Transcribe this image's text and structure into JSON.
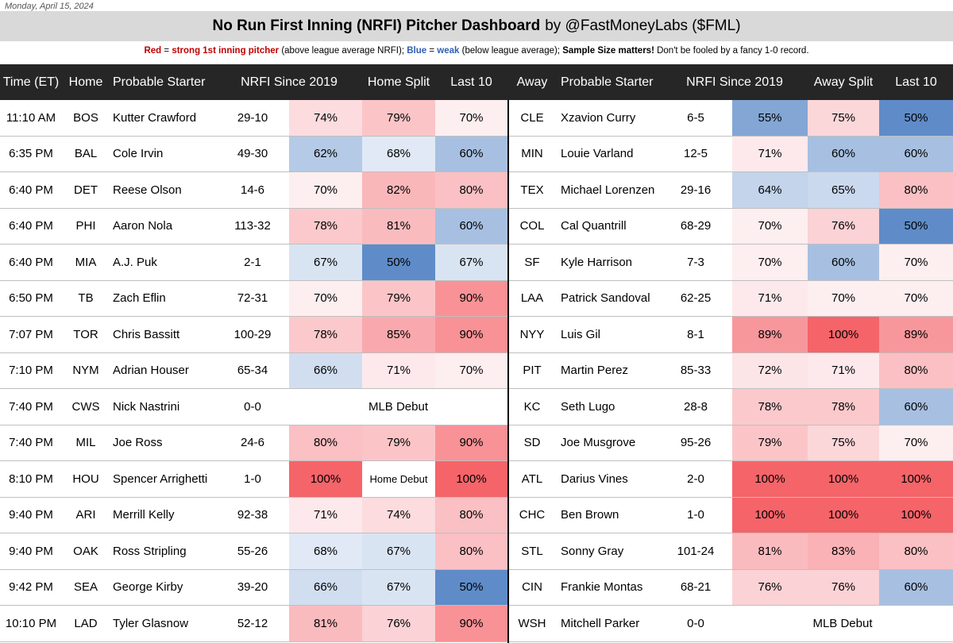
{
  "date": "Monday, April 15, 2024",
  "title": {
    "main": "No Run First Inning (NRFI) Pitcher Dashboard",
    "byline": "by @FastMoneyLabs ($FML)"
  },
  "legend": {
    "red_word": "Red",
    "red_desc": "strong 1st inning pitcher",
    "red_paren": "(above league average NRFI);",
    "blue_word": "Blue",
    "blue_desc": "weak",
    "blue_paren": "(below league average);",
    "warning": "Sample Size matters!",
    "tail": "Don't be fooled by a fancy 1-0 record."
  },
  "colors": {
    "header_bg": "#262626",
    "title_bg": "#d9d9d9",
    "red_text": "#c00000",
    "blue_text": "#2f5fb3"
  },
  "headers": [
    "Time (ET)",
    "Home",
    "Probable Starter",
    "NRFI Since 2019",
    "Home Split",
    "Last 10",
    "Away",
    "Probable Starter",
    "NRFI Since 2019",
    "Away Split",
    "Last 10"
  ],
  "rows": [
    {
      "time": "11:10 AM",
      "home": "BOS",
      "home_sp": "Kutter Crawford",
      "home_rec": "29-10",
      "home_nrfi": "74%",
      "home_split": "79%",
      "home_l10": "70%",
      "away": "CLE",
      "away_sp": "Xzavion Curry",
      "away_rec": "6-5",
      "away_nrfi": "55%",
      "away_split": "75%",
      "away_l10": "50%"
    },
    {
      "time": "6:35 PM",
      "home": "BAL",
      "home_sp": "Cole Irvin",
      "home_rec": "49-30",
      "home_nrfi": "62%",
      "home_split": "68%",
      "home_l10": "60%",
      "away": "MIN",
      "away_sp": "Louie Varland",
      "away_rec": "12-5",
      "away_nrfi": "71%",
      "away_split": "60%",
      "away_l10": "60%"
    },
    {
      "time": "6:40 PM",
      "home": "DET",
      "home_sp": "Reese Olson",
      "home_rec": "14-6",
      "home_nrfi": "70%",
      "home_split": "82%",
      "home_l10": "80%",
      "away": "TEX",
      "away_sp": "Michael Lorenzen",
      "away_rec": "29-16",
      "away_nrfi": "64%",
      "away_split": "65%",
      "away_l10": "80%"
    },
    {
      "time": "6:40 PM",
      "home": "PHI",
      "home_sp": "Aaron Nola",
      "home_rec": "113-32",
      "home_nrfi": "78%",
      "home_split": "81%",
      "home_l10": "60%",
      "away": "COL",
      "away_sp": "Cal Quantrill",
      "away_rec": "68-29",
      "away_nrfi": "70%",
      "away_split": "76%",
      "away_l10": "50%"
    },
    {
      "time": "6:40 PM",
      "home": "MIA",
      "home_sp": "A.J. Puk",
      "home_rec": "2-1",
      "home_nrfi": "67%",
      "home_split": "50%",
      "home_l10": "67%",
      "away": "SF",
      "away_sp": "Kyle Harrison",
      "away_rec": "7-3",
      "away_nrfi": "70%",
      "away_split": "60%",
      "away_l10": "70%"
    },
    {
      "time": "6:50 PM",
      "home": "TB",
      "home_sp": "Zach Eflin",
      "home_rec": "72-31",
      "home_nrfi": "70%",
      "home_split": "79%",
      "home_l10": "90%",
      "away": "LAA",
      "away_sp": "Patrick Sandoval",
      "away_rec": "62-25",
      "away_nrfi": "71%",
      "away_split": "70%",
      "away_l10": "70%"
    },
    {
      "time": "7:07 PM",
      "home": "TOR",
      "home_sp": "Chris Bassitt",
      "home_rec": "100-29",
      "home_nrfi": "78%",
      "home_split": "85%",
      "home_l10": "90%",
      "away": "NYY",
      "away_sp": "Luis Gil",
      "away_rec": "8-1",
      "away_nrfi": "89%",
      "away_split": "100%",
      "away_l10": "89%"
    },
    {
      "time": "7:10 PM",
      "home": "NYM",
      "home_sp": "Adrian Houser",
      "home_rec": "65-34",
      "home_nrfi": "66%",
      "home_split": "71%",
      "home_l10": "70%",
      "away": "PIT",
      "away_sp": "Martin Perez",
      "away_rec": "85-33",
      "away_nrfi": "72%",
      "away_split": "71%",
      "away_l10": "80%"
    },
    {
      "time": "7:40 PM",
      "home": "CWS",
      "home_sp": "Nick Nastrini",
      "home_rec": "0-0",
      "home_debut": "MLB Debut",
      "away": "KC",
      "away_sp": "Seth Lugo",
      "away_rec": "28-8",
      "away_nrfi": "78%",
      "away_split": "78%",
      "away_l10": "60%"
    },
    {
      "time": "7:40 PM",
      "home": "MIL",
      "home_sp": "Joe Ross",
      "home_rec": "24-6",
      "home_nrfi": "80%",
      "home_split": "79%",
      "home_l10": "90%",
      "away": "SD",
      "away_sp": "Joe Musgrove",
      "away_rec": "95-26",
      "away_nrfi": "79%",
      "away_split": "75%",
      "away_l10": "70%"
    },
    {
      "time": "8:10 PM",
      "home": "HOU",
      "home_sp": "Spencer Arrighetti",
      "home_rec": "1-0",
      "home_nrfi": "100%",
      "home_split": "Home Debut",
      "home_l10": "100%",
      "away": "ATL",
      "away_sp": "Darius Vines",
      "away_rec": "2-0",
      "away_nrfi": "100%",
      "away_split": "100%",
      "away_l10": "100%"
    },
    {
      "time": "9:40 PM",
      "home": "ARI",
      "home_sp": "Merrill Kelly",
      "home_rec": "92-38",
      "home_nrfi": "71%",
      "home_split": "74%",
      "home_l10": "80%",
      "away": "CHC",
      "away_sp": "Ben Brown",
      "away_rec": "1-0",
      "away_nrfi": "100%",
      "away_split": "100%",
      "away_l10": "100%"
    },
    {
      "time": "9:40 PM",
      "home": "OAK",
      "home_sp": "Ross Stripling",
      "home_rec": "55-26",
      "home_nrfi": "68%",
      "home_split": "67%",
      "home_l10": "80%",
      "away": "STL",
      "away_sp": "Sonny Gray",
      "away_rec": "101-24",
      "away_nrfi": "81%",
      "away_split": "83%",
      "away_l10": "80%"
    },
    {
      "time": "9:42 PM",
      "home": "SEA",
      "home_sp": "George Kirby",
      "home_rec": "39-20",
      "home_nrfi": "66%",
      "home_split": "67%",
      "home_l10": "50%",
      "away": "CIN",
      "away_sp": "Frankie Montas",
      "away_rec": "68-21",
      "away_nrfi": "76%",
      "away_split": "76%",
      "away_l10": "60%"
    },
    {
      "time": "10:10 PM",
      "home": "LAD",
      "home_sp": "Tyler Glasnow",
      "home_rec": "52-12",
      "home_nrfi": "81%",
      "home_split": "76%",
      "home_l10": "90%",
      "away": "WSH",
      "away_sp": "Mitchell Parker",
      "away_rec": "0-0",
      "away_debut": "MLB Debut"
    }
  ]
}
